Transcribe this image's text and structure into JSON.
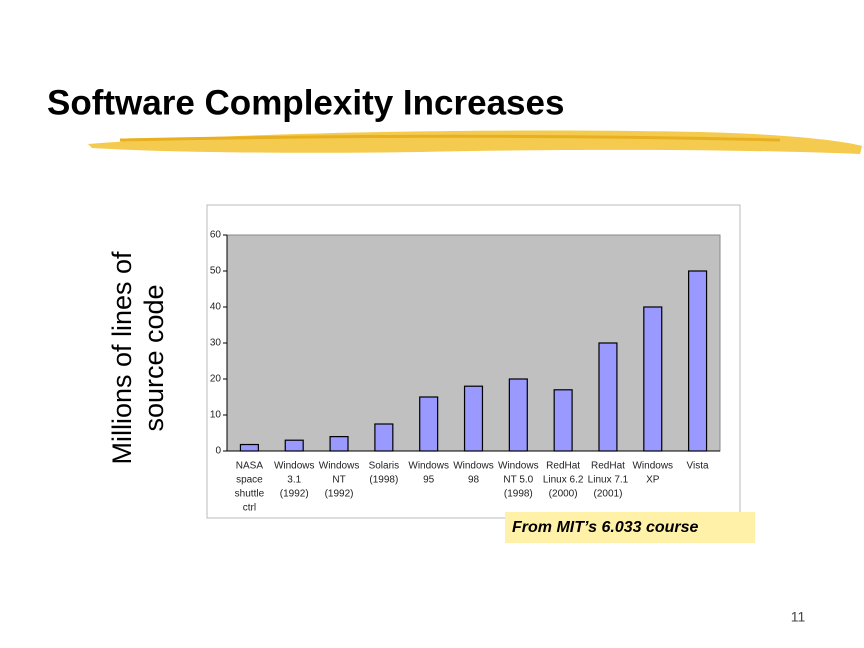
{
  "slide": {
    "title": "Software Complexity Increases",
    "note": "From MIT’s 6.033 course",
    "page_number": "11"
  },
  "chart_data": {
    "type": "bar",
    "ylabel": [
      "Millions of lines of",
      "source code"
    ],
    "categories": [
      [
        "NASA",
        "space",
        "shuttle",
        "ctrl"
      ],
      [
        "Windows",
        "3.1",
        "(1992)"
      ],
      [
        "Windows",
        "NT",
        "(1992)"
      ],
      [
        "Solaris",
        "(1998)"
      ],
      [
        "Windows",
        "95"
      ],
      [
        "Windows",
        "98"
      ],
      [
        "Windows",
        "NT 5.0",
        "(1998)"
      ],
      [
        "RedHat",
        "Linux 6.2",
        "(2000)"
      ],
      [
        "RedHat",
        "Linux 7.1",
        "(2001)"
      ],
      [
        "Windows",
        "XP"
      ],
      [
        "Vista"
      ]
    ],
    "values": [
      1.8,
      3,
      4,
      7.5,
      15,
      18,
      20,
      17,
      30,
      40,
      50
    ],
    "color": "#9999ff",
    "ylim": [
      0,
      60
    ],
    "yticks": [
      0,
      10,
      20,
      30,
      40,
      50,
      60
    ],
    "grid": false
  }
}
